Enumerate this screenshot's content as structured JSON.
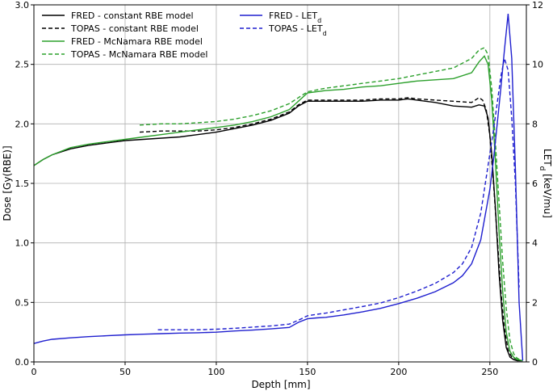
{
  "chart_data": {
    "type": "line",
    "xlabel": "Depth [mm]",
    "ylabel": "Dose [Gy(RBE)]",
    "y2label": "LETₐ [keV/mu]",
    "y2label_parts": {
      "main": "LET",
      "sub": "d",
      "rest": " [keV/mu]"
    },
    "xlim": [
      0,
      270
    ],
    "ylim": [
      0,
      3.0
    ],
    "y2lim": [
      0,
      12
    ],
    "xticks": [
      "0",
      "50",
      "100",
      "150",
      "200",
      "250"
    ],
    "yticks": [
      "0.0",
      "0.5",
      "1.0",
      "1.5",
      "2.0",
      "2.5",
      "3.0"
    ],
    "y2ticks": [
      "0",
      "2",
      "4",
      "6",
      "8",
      "10",
      "12"
    ],
    "grid": true,
    "legend_left": "top-left",
    "legend_right": "top-center",
    "series": [
      {
        "name": "FRED - constant RBE model",
        "axis": "left",
        "color": "#000000",
        "dash": "solid",
        "x": [
          0,
          5,
          10,
          20,
          30,
          40,
          50,
          60,
          70,
          80,
          90,
          100,
          110,
          120,
          130,
          140,
          145,
          150,
          160,
          170,
          180,
          190,
          200,
          205,
          210,
          220,
          230,
          240,
          244,
          247,
          249,
          251,
          253,
          255,
          257,
          259,
          261,
          263,
          265,
          268
        ],
        "y": [
          1.65,
          1.7,
          1.74,
          1.79,
          1.82,
          1.84,
          1.86,
          1.87,
          1.88,
          1.89,
          1.91,
          1.93,
          1.96,
          1.99,
          2.03,
          2.09,
          2.15,
          2.19,
          2.19,
          2.19,
          2.19,
          2.2,
          2.2,
          2.21,
          2.2,
          2.18,
          2.15,
          2.14,
          2.16,
          2.15,
          2.05,
          1.75,
          1.3,
          0.75,
          0.35,
          0.12,
          0.04,
          0.02,
          0.01,
          0.01
        ]
      },
      {
        "name": "TOPAS - constant RBE model",
        "axis": "left",
        "color": "#000000",
        "dash": "dashed",
        "x": [
          58,
          70,
          80,
          90,
          100,
          110,
          120,
          130,
          140,
          145,
          150,
          160,
          170,
          180,
          190,
          200,
          205,
          210,
          220,
          230,
          240,
          244,
          246,
          248,
          250,
          252,
          254,
          256,
          258,
          260,
          262,
          265,
          268
        ],
        "y": [
          1.93,
          1.94,
          1.94,
          1.94,
          1.95,
          1.97,
          2.0,
          2.04,
          2.1,
          2.16,
          2.2,
          2.2,
          2.2,
          2.2,
          2.21,
          2.21,
          2.22,
          2.21,
          2.2,
          2.19,
          2.18,
          2.22,
          2.2,
          2.12,
          1.9,
          1.5,
          1.05,
          0.6,
          0.28,
          0.1,
          0.04,
          0.02,
          0.01
        ]
      },
      {
        "name": "FRED - McNamara RBE model",
        "axis": "left",
        "color": "#2ca02c",
        "dash": "solid",
        "x": [
          0,
          5,
          10,
          20,
          30,
          40,
          50,
          60,
          70,
          80,
          90,
          100,
          110,
          120,
          130,
          140,
          145,
          150,
          160,
          170,
          180,
          190,
          200,
          210,
          220,
          230,
          240,
          244,
          247,
          249,
          251,
          253,
          255,
          257,
          259,
          261,
          263,
          265,
          268
        ],
        "y": [
          1.65,
          1.7,
          1.74,
          1.8,
          1.83,
          1.85,
          1.87,
          1.89,
          1.91,
          1.93,
          1.95,
          1.97,
          1.99,
          2.02,
          2.06,
          2.12,
          2.19,
          2.26,
          2.28,
          2.29,
          2.31,
          2.32,
          2.34,
          2.36,
          2.37,
          2.38,
          2.43,
          2.52,
          2.57,
          2.5,
          2.2,
          1.7,
          1.1,
          0.6,
          0.25,
          0.09,
          0.04,
          0.02,
          0.01
        ]
      },
      {
        "name": "TOPAS - McNamara RBE model",
        "axis": "left",
        "color": "#2ca02c",
        "dash": "dashed",
        "x": [
          58,
          70,
          80,
          90,
          100,
          110,
          120,
          130,
          140,
          145,
          150,
          160,
          170,
          180,
          190,
          200,
          210,
          220,
          230,
          240,
          244,
          247,
          249,
          251,
          253,
          255,
          257,
          259,
          261,
          263,
          265,
          268
        ],
        "y": [
          1.99,
          2.0,
          2.0,
          2.01,
          2.02,
          2.04,
          2.07,
          2.11,
          2.17,
          2.22,
          2.27,
          2.3,
          2.32,
          2.34,
          2.36,
          2.38,
          2.41,
          2.44,
          2.47,
          2.55,
          2.62,
          2.64,
          2.58,
          2.3,
          1.85,
          1.35,
          0.85,
          0.45,
          0.18,
          0.07,
          0.03,
          0.01
        ]
      },
      {
        "name": "FRED - LET",
        "name_sub": "d",
        "axis": "right",
        "color": "#1f1fcf",
        "dash": "solid",
        "x": [
          0,
          5,
          10,
          20,
          30,
          40,
          50,
          60,
          70,
          80,
          90,
          100,
          110,
          120,
          130,
          140,
          145,
          150,
          155,
          160,
          170,
          180,
          190,
          200,
          210,
          220,
          230,
          235,
          240,
          245,
          250,
          252,
          254,
          256,
          258,
          260,
          262,
          264,
          266,
          268
        ],
        "y": [
          0.62,
          0.7,
          0.76,
          0.81,
          0.85,
          0.88,
          0.91,
          0.93,
          0.95,
          0.97,
          0.98,
          1.0,
          1.04,
          1.07,
          1.11,
          1.16,
          1.33,
          1.45,
          1.48,
          1.5,
          1.58,
          1.68,
          1.8,
          1.96,
          2.14,
          2.36,
          2.66,
          2.9,
          3.3,
          4.1,
          5.8,
          6.8,
          8.0,
          9.2,
          10.5,
          11.7,
          10.2,
          6.5,
          2.0,
          0.05
        ]
      },
      {
        "name": "TOPAS - LET",
        "name_sub": "d",
        "axis": "right",
        "color": "#1f1fcf",
        "dash": "dashed",
        "x": [
          68,
          80,
          90,
          100,
          110,
          120,
          130,
          140,
          145,
          150,
          155,
          160,
          170,
          180,
          190,
          200,
          210,
          220,
          230,
          235,
          240,
          245,
          248,
          250,
          252,
          254,
          256,
          258,
          260,
          262,
          264,
          266
        ],
        "y": [
          1.08,
          1.08,
          1.08,
          1.1,
          1.13,
          1.17,
          1.21,
          1.27,
          1.4,
          1.55,
          1.6,
          1.64,
          1.75,
          1.86,
          1.98,
          2.16,
          2.38,
          2.64,
          3.0,
          3.3,
          3.85,
          5.0,
          6.2,
          7.0,
          7.8,
          8.7,
          9.6,
          10.2,
          9.8,
          8.2,
          6.0,
          2.5
        ]
      }
    ]
  }
}
